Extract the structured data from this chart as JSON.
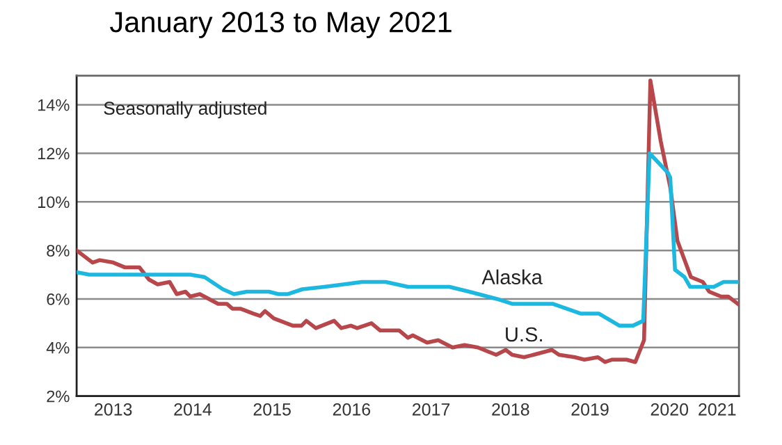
{
  "chart_data": {
    "type": "line",
    "title": "January 2013 to May 2021",
    "annotations": [
      "Seasonally adjusted"
    ],
    "xlim": [
      2013.04,
      2021.375
    ],
    "xticks": [
      {
        "value": 2013.5,
        "label": "2013"
      },
      {
        "value": 2014.5,
        "label": "2014"
      },
      {
        "value": 2015.5,
        "label": "2015"
      },
      {
        "value": 2016.5,
        "label": "2016"
      },
      {
        "value": 2017.5,
        "label": "2017"
      },
      {
        "value": 2018.5,
        "label": "2018"
      },
      {
        "value": 2019.5,
        "label": "2019"
      },
      {
        "value": 2020.5,
        "label": "2020"
      },
      {
        "value": 2021.1,
        "label": "2021"
      }
    ],
    "ylim": [
      2,
      15.2
    ],
    "yticks": [
      {
        "value": 2,
        "label": "2%"
      },
      {
        "value": 4,
        "label": "4%"
      },
      {
        "value": 6,
        "label": "6%"
      },
      {
        "value": 8,
        "label": "8%"
      },
      {
        "value": 10,
        "label": "10%"
      },
      {
        "value": 12,
        "label": "12%"
      },
      {
        "value": 14,
        "label": "14%"
      }
    ],
    "grid": "y",
    "legend": false,
    "marker": "none",
    "line_style": "solid",
    "series": [
      {
        "name": "Alaska",
        "color": "#1cb8e0",
        "x": [
          2013.04,
          2013.2,
          2014.47,
          2014.65,
          2014.88,
          2015.02,
          2015.18,
          2015.46,
          2015.58,
          2015.7,
          2015.88,
          2016.16,
          2016.4,
          2016.63,
          2016.93,
          2017.21,
          2017.73,
          2017.98,
          2018.33,
          2018.52,
          2019.03,
          2019.38,
          2019.61,
          2019.87,
          2020.04,
          2020.17,
          2020.25,
          2020.48,
          2020.51,
          2020.57,
          2020.69,
          2020.76,
          2021.06,
          2021.18,
          2021.36
        ],
        "values": [
          7.1,
          7.0,
          7.0,
          6.9,
          6.4,
          6.2,
          6.3,
          6.3,
          6.2,
          6.2,
          6.4,
          6.5,
          6.6,
          6.7,
          6.7,
          6.5,
          6.5,
          6.3,
          6.0,
          5.8,
          5.8,
          5.4,
          5.4,
          4.9,
          4.9,
          5.1,
          12.0,
          11.2,
          11.0,
          7.2,
          6.9,
          6.5,
          6.5,
          6.7,
          6.7
        ]
      },
      {
        "name": "U.S.",
        "color": "#b8474b",
        "x": [
          2013.04,
          2013.24,
          2013.33,
          2013.5,
          2013.65,
          2013.83,
          2013.95,
          2014.06,
          2014.21,
          2014.3,
          2014.41,
          2014.47,
          2014.59,
          2014.82,
          2014.93,
          2015.0,
          2015.1,
          2015.26,
          2015.35,
          2015.41,
          2015.52,
          2015.76,
          2015.87,
          2015.93,
          2016.05,
          2016.28,
          2016.37,
          2016.49,
          2016.57,
          2016.75,
          2016.86,
          2017.1,
          2017.21,
          2017.27,
          2017.45,
          2017.59,
          2017.77,
          2017.92,
          2018.09,
          2018.32,
          2018.44,
          2018.52,
          2018.67,
          2018.79,
          2019.02,
          2019.11,
          2019.31,
          2019.43,
          2019.6,
          2019.69,
          2019.78,
          2019.96,
          2020.07,
          2020.18,
          2020.26,
          2020.39,
          2020.51,
          2020.6,
          2020.77,
          2020.92,
          2021.0,
          2021.15,
          2021.24,
          2021.36
        ],
        "values": [
          8.0,
          7.5,
          7.6,
          7.5,
          7.3,
          7.3,
          6.8,
          6.6,
          6.7,
          6.2,
          6.3,
          6.1,
          6.2,
          5.8,
          5.8,
          5.6,
          5.6,
          5.4,
          5.3,
          5.5,
          5.2,
          4.9,
          4.9,
          5.1,
          4.8,
          5.1,
          4.8,
          4.9,
          4.8,
          5.0,
          4.7,
          4.7,
          4.4,
          4.5,
          4.2,
          4.3,
          4.0,
          4.1,
          4.0,
          3.7,
          3.9,
          3.7,
          3.6,
          3.7,
          3.9,
          3.7,
          3.6,
          3.5,
          3.6,
          3.4,
          3.5,
          3.5,
          3.4,
          4.3,
          15.0,
          12.5,
          10.6,
          8.4,
          6.9,
          6.7,
          6.3,
          6.1,
          6.1,
          5.8
        ]
      }
    ]
  }
}
